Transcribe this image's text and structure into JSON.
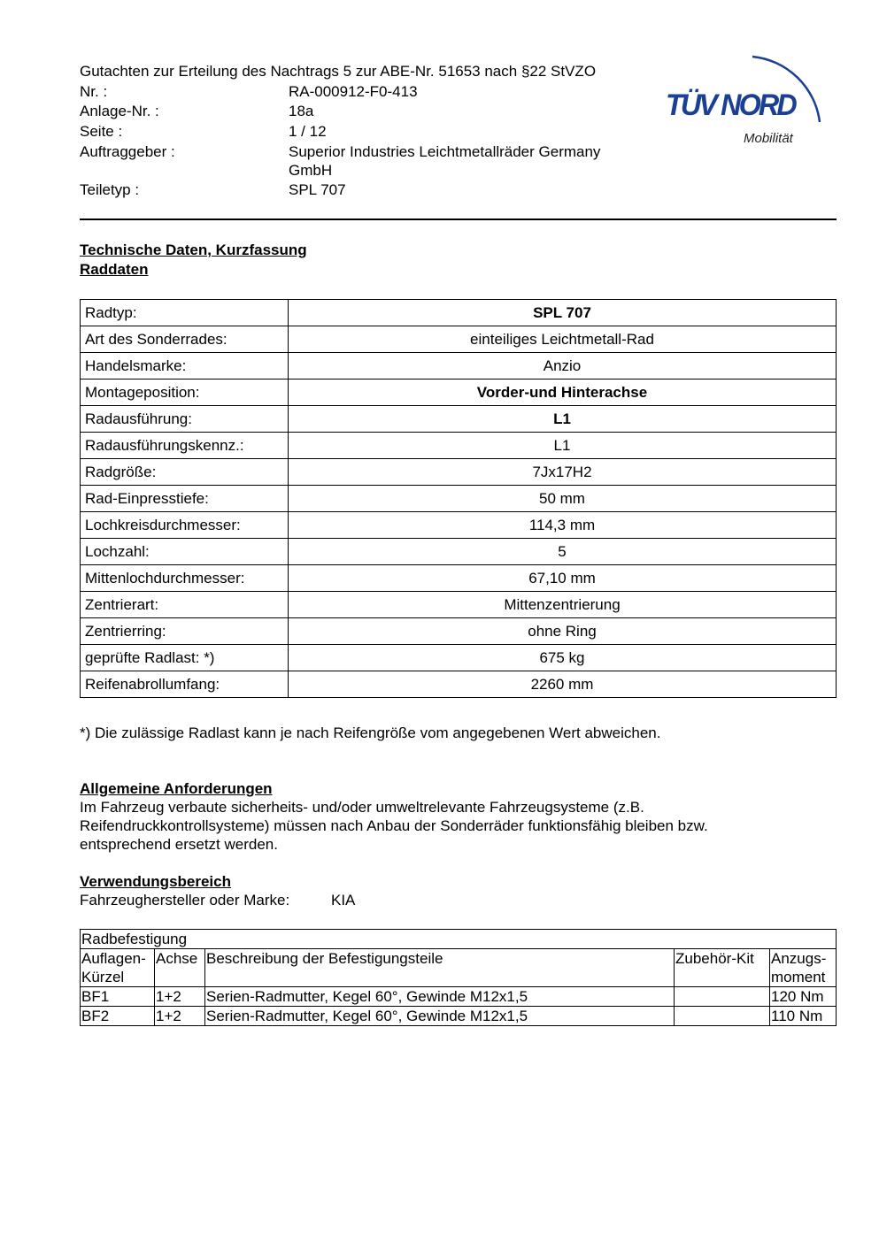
{
  "header": {
    "title": "Gutachten zur Erteilung des Nachtrags 5 zur ABE-Nr. 51653 nach §22 StVZO",
    "fields": [
      {
        "label": "Nr. :",
        "value": "RA-000912-F0-413"
      },
      {
        "label": "Anlage-Nr. :",
        "value": "18a"
      },
      {
        "label": "Seite :",
        "value": "1 / 12"
      },
      {
        "label": "Auftraggeber :",
        "value": "Superior Industries Leichtmetallräder Germany",
        "value2": "GmbH"
      },
      {
        "label": "Teiletyp :",
        "value": "SPL 707"
      }
    ],
    "logo": {
      "text": "TÜV NORD",
      "subtitle": "Mobilität",
      "color": "#1b3f94"
    }
  },
  "section1": {
    "heading": "Technische Daten, Kurzfassung",
    "subheading": "Raddaten"
  },
  "raddaten": [
    {
      "label": "Radtyp:",
      "value": "SPL 707",
      "bold": true
    },
    {
      "label": "Art des Sonderrades:",
      "value": "einteiliges Leichtmetall-Rad"
    },
    {
      "label": "Handelsmarke:",
      "value": "Anzio"
    },
    {
      "label": "Montageposition:",
      "value": "Vorder-und Hinterachse",
      "bold": true
    },
    {
      "label": "Radausführung:",
      "value": "L1",
      "bold": true
    },
    {
      "label": "Radausführungskennz.:",
      "value": "L1"
    },
    {
      "label": "Radgröße:",
      "value": "7Jx17H2"
    },
    {
      "label": "Rad-Einpresstiefe:",
      "value": "50 mm"
    },
    {
      "label": "Lochkreisdurchmesser:",
      "value": "114,3 mm"
    },
    {
      "label": "Lochzahl:",
      "value": "5"
    },
    {
      "label": "Mittenlochdurchmesser:",
      "value": "67,10 mm"
    },
    {
      "label": "Zentrierart:",
      "value": "Mittenzentrierung"
    },
    {
      "label": "Zentrierring:",
      "value": "ohne Ring"
    },
    {
      "label": "geprüfte Radlast: *)",
      "value": "675 kg"
    },
    {
      "label": "Reifenabrollumfang:",
      "value": "2260 mm"
    }
  ],
  "footnote": "*) Die zulässige Radlast kann je nach Reifengröße vom angegebenen Wert abweichen.",
  "allgemein": {
    "heading": "Allgemeine Anforderungen",
    "lines": [
      "Im Fahrzeug verbaute sicherheits- und/oder umweltrelevante Fahrzeugsysteme (z.B.",
      "Reifendruckkontrollsysteme) müssen nach Anbau der Sonderräder funktionsfähig bleiben bzw.",
      "entsprechend ersetzt werden."
    ]
  },
  "verwendung": {
    "heading": "Verwendungsbereich",
    "label": "Fahrzeughersteller oder Marke:",
    "value": "KIA"
  },
  "radbefestigung": {
    "title": "Radbefestigung",
    "headers": [
      [
        "Auflagen-",
        "Kürzel"
      ],
      [
        "Achse"
      ],
      [
        "Beschreibung der Befestigungsteile"
      ],
      [
        "Zubehör-Kit"
      ],
      [
        "Anzugs-",
        "moment"
      ]
    ],
    "rows": [
      [
        "BF1",
        "1+2",
        "Serien-Radmutter, Kegel 60°, Gewinde M12x1,5",
        "",
        "120 Nm"
      ],
      [
        "BF2",
        "1+2",
        "Serien-Radmutter, Kegel 60°, Gewinde M12x1,5",
        "",
        "110 Nm"
      ]
    ]
  }
}
